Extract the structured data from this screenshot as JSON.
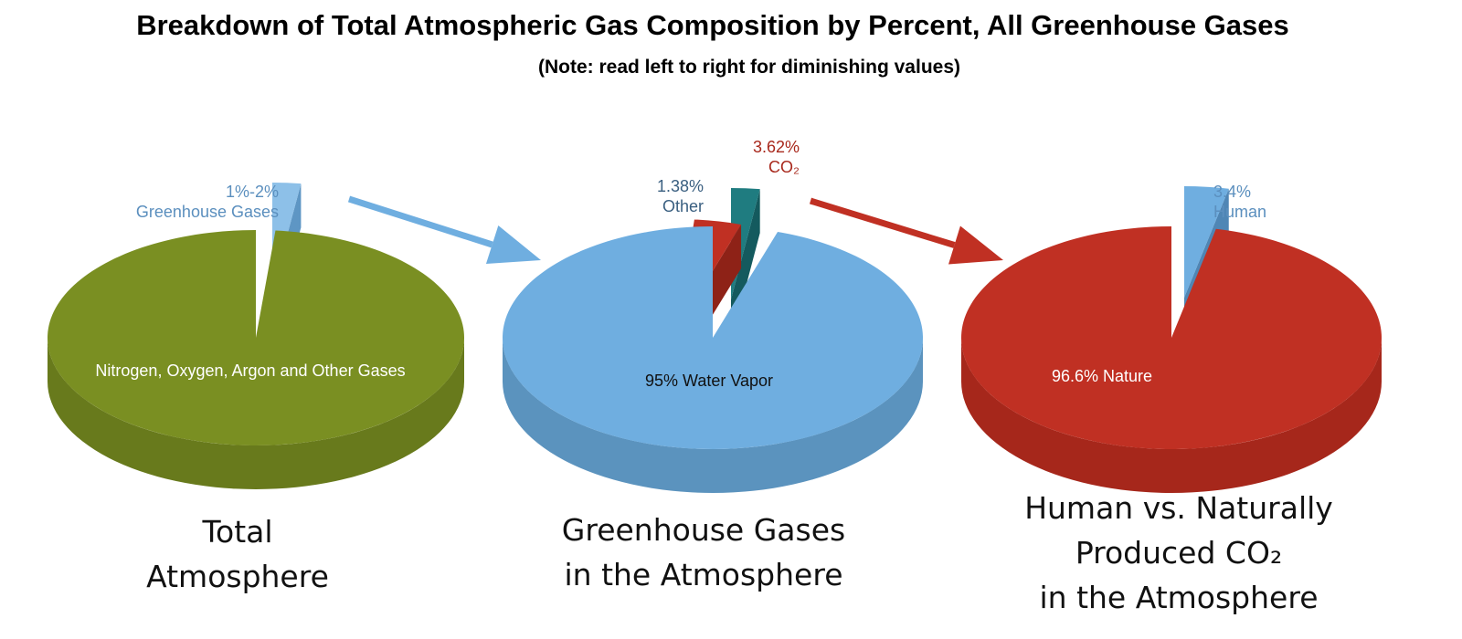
{
  "title": "Breakdown of Total Atmospheric Gas Composition by Percent, All Greenhouse Gases",
  "subtitle": "(Note: read left to right for diminishing values)",
  "chart_data": [
    {
      "type": "pie",
      "caption": [
        "Total",
        "Atmosphere"
      ],
      "slices": [
        {
          "label": "Nitrogen, Oxygen, Argon and Other Gases",
          "value": 98.5,
          "color": "#7A8F22",
          "side_color": "#687A1C"
        },
        {
          "label_lines": [
            "1%-2%",
            "Greenhouse Gases"
          ],
          "value": 1.5,
          "color": "#8DC0E8",
          "side_color": "#5E96C4",
          "label_color": "#5B8FBE",
          "exploded": true
        }
      ]
    },
    {
      "type": "pie",
      "caption": [
        "Greenhouse Gases",
        "in the Atmosphere"
      ],
      "slices": [
        {
          "label": "95% Water Vapor",
          "value": 95,
          "color": "#6FAEE0",
          "side_color": "#5B93BE"
        },
        {
          "label_lines": [
            "1.38%",
            "Other"
          ],
          "value": 1.38,
          "color": "#1F7C80",
          "side_color": "#145A5E",
          "label_color": "#3A5F80",
          "exploded": true
        },
        {
          "label_lines": [
            "3.62%",
            "CO₂"
          ],
          "value": 3.62,
          "color": "#C03023",
          "side_color": "#8E2217",
          "label_color": "#A8281C",
          "exploded": true
        }
      ]
    },
    {
      "type": "pie",
      "caption": [
        "Human vs. Naturally",
        "Produced CO₂",
        "in the Atmosphere"
      ],
      "slices": [
        {
          "label": "96.6% Nature",
          "value": 96.6,
          "color": "#C03023",
          "side_color": "#A6271B"
        },
        {
          "label_lines": [
            "3.4%",
            "Human"
          ],
          "value": 3.4,
          "color": "#6FAEE0",
          "side_color": "#4F86B5",
          "label_color": "#5B8FBE",
          "exploded": true
        }
      ]
    }
  ],
  "arrows": [
    {
      "color": "#6FAEE0"
    },
    {
      "color": "#C03023"
    }
  ]
}
